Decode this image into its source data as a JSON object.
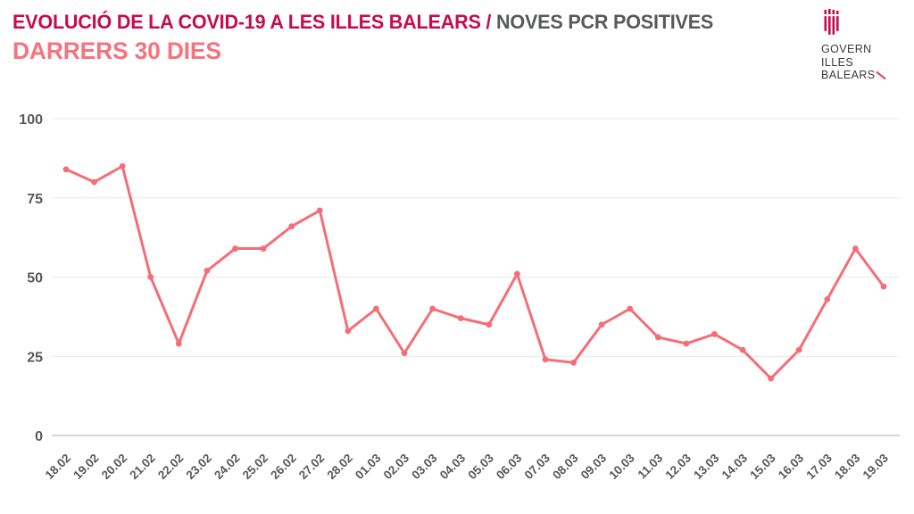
{
  "header": {
    "title_primary": "EVOLUCIÓ DE LA COVID-19 A LES ILLES BALEARS / ",
    "title_secondary": "NOVES PCR POSITIVES",
    "subtitle": "DARRERS 30 DIES"
  },
  "logo": {
    "line1": "GOVERN",
    "line2": "ILLES",
    "line3": "BALEARS"
  },
  "colors": {
    "title_crimson": "#c60b4e",
    "title_gray": "#58595b",
    "subtitle_salmon": "#f4737d",
    "line_salmon": "#f56d76",
    "grid_gray": "#e9e9e9",
    "zero_axis_gray": "#c9c9c9",
    "tick_text_gray": "#58595b",
    "logo_text_dark": "#3a3a3c",
    "logo_slash_pink": "#e8476b"
  },
  "chart_data": {
    "type": "line",
    "title": "EVOLUCIÓ DE LA COVID-19 A LES ILLES BALEARS / NOVES PCR POSITIVES",
    "subtitle": "DARRERS 30 DIES",
    "categories": [
      "18.02",
      "19.02",
      "20.02",
      "21.02",
      "22.02",
      "23.02",
      "24.02",
      "25.02",
      "26.02",
      "27.02",
      "28.02",
      "01.03",
      "02.03",
      "03.03",
      "04.03",
      "05.03",
      "06.03",
      "07.03",
      "08.03",
      "09.03",
      "10.03",
      "11.03",
      "12.03",
      "13.03",
      "14.03",
      "15.03",
      "16.03",
      "17.03",
      "18.03",
      "19.03"
    ],
    "values": [
      84,
      80,
      85,
      50,
      29,
      52,
      59,
      59,
      66,
      71,
      33,
      40,
      26,
      40,
      37,
      35,
      51,
      24,
      23,
      35,
      40,
      31,
      29,
      32,
      27,
      18,
      27,
      43,
      59,
      47
    ],
    "yticks": [
      0,
      25,
      50,
      75,
      100
    ],
    "ylim": [
      0,
      100
    ],
    "xlabel": "",
    "ylabel": "",
    "legend_position": "none",
    "grid": "horizontal",
    "marker": "circle",
    "line_color": "#f56d76"
  }
}
